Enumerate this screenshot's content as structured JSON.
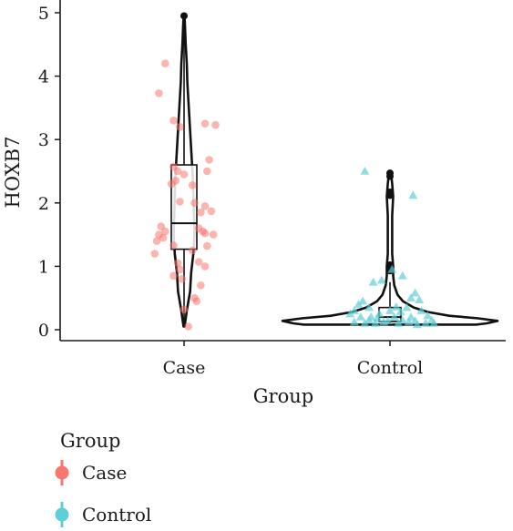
{
  "chart_data": {
    "type": "violin",
    "xlabel": "Group",
    "ylabel": "HOXB7",
    "ylim": [
      -0.15,
      5.15
    ],
    "y_ticks": [
      0,
      1,
      2,
      3,
      4,
      5
    ],
    "y_tick_labels": [
      "0",
      "1",
      "2",
      "3",
      "4",
      "5"
    ],
    "categories": [
      "Case",
      "Control"
    ],
    "grid": false,
    "legend": {
      "title": "Group",
      "position": "bottom-left",
      "entries": [
        {
          "label": "Case",
          "color": "#F8766D",
          "shape": "circle"
        },
        {
          "label": "Control",
          "color": "#5FCFD7",
          "shape": "triangle"
        }
      ]
    },
    "groups": [
      {
        "name": "Case",
        "color": "#F8766D",
        "box": {
          "min": 0.05,
          "q1": 1.27,
          "median": 1.68,
          "q3": 2.6,
          "max": 4.95
        },
        "outliers": [
          4.95
        ],
        "violin_profile": [
          [
            0.05,
            0.05
          ],
          [
            0.3,
            0.25
          ],
          [
            0.6,
            0.55
          ],
          [
            0.9,
            0.65
          ],
          [
            1.2,
            0.85
          ],
          [
            1.5,
            0.95
          ],
          [
            1.8,
            0.9
          ],
          [
            2.1,
            0.85
          ],
          [
            2.4,
            0.8
          ],
          [
            2.7,
            0.7
          ],
          [
            3.0,
            0.6
          ],
          [
            3.3,
            0.5
          ],
          [
            3.6,
            0.4
          ],
          [
            3.9,
            0.3
          ],
          [
            4.2,
            0.25
          ],
          [
            4.5,
            0.15
          ],
          [
            4.8,
            0.08
          ],
          [
            4.95,
            0.03
          ]
        ],
        "points": [
          [
            -0.09,
            4.2
          ],
          [
            -0.12,
            3.73
          ],
          [
            -0.05,
            3.3
          ],
          [
            -0.02,
            3.2
          ],
          [
            0.1,
            3.25
          ],
          [
            0.15,
            3.23
          ],
          [
            0.12,
            2.68
          ],
          [
            0.11,
            2.5
          ],
          [
            -0.05,
            2.57
          ],
          [
            -0.03,
            2.5
          ],
          [
            0.0,
            2.45
          ],
          [
            -0.04,
            2.35
          ],
          [
            -0.06,
            2.3
          ],
          [
            0.04,
            2.28
          ],
          [
            -0.02,
            2.02
          ],
          [
            0.05,
            2.0
          ],
          [
            0.1,
            1.95
          ],
          [
            0.13,
            1.87
          ],
          [
            0.08,
            1.85
          ],
          [
            -0.11,
            1.63
          ],
          [
            -0.09,
            1.55
          ],
          [
            -0.12,
            1.5
          ],
          [
            -0.1,
            1.45
          ],
          [
            -0.13,
            1.4
          ],
          [
            0.07,
            1.6
          ],
          [
            0.09,
            1.55
          ],
          [
            0.1,
            1.52
          ],
          [
            0.14,
            1.5
          ],
          [
            0.11,
            1.32
          ],
          [
            0.04,
            1.25
          ],
          [
            -0.05,
            1.33
          ],
          [
            -0.14,
            1.2
          ],
          [
            -0.03,
            1.05
          ],
          [
            -0.02,
            0.95
          ],
          [
            -0.05,
            0.85
          ],
          [
            -0.01,
            0.8
          ],
          [
            0.07,
            1.07
          ],
          [
            0.1,
            1.0
          ],
          [
            0.08,
            0.7
          ],
          [
            0.05,
            0.5
          ],
          [
            0.06,
            0.45
          ],
          [
            0.0,
            0.32
          ],
          [
            0.02,
            0.05
          ]
        ]
      },
      {
        "name": "Control",
        "color": "#5FCFD7",
        "box": {
          "min": 0.08,
          "q1": 0.13,
          "median": 0.2,
          "q3": 0.35,
          "max": 0.75
        },
        "outliers": [
          2.47,
          2.42,
          2.17,
          2.12,
          1.02,
          0.98,
          0.93
        ],
        "violin_profile": [
          [
            0.08,
            0.8
          ],
          [
            0.1,
            0.9
          ],
          [
            0.14,
            1.0
          ],
          [
            0.18,
            0.82
          ],
          [
            0.22,
            0.55
          ],
          [
            0.28,
            0.35
          ],
          [
            0.35,
            0.22
          ],
          [
            0.45,
            0.12
          ],
          [
            0.55,
            0.07
          ],
          [
            0.7,
            0.04
          ],
          [
            0.85,
            0.03
          ],
          [
            1.0,
            0.03
          ],
          [
            1.2,
            0.02
          ],
          [
            1.5,
            0.02
          ],
          [
            1.8,
            0.02
          ],
          [
            2.1,
            0.03
          ],
          [
            2.3,
            0.02
          ],
          [
            2.47,
            0.01
          ]
        ],
        "points": [
          [
            -0.12,
            2.5
          ],
          [
            0.11,
            2.12
          ],
          [
            0.06,
            0.85
          ],
          [
            0.01,
            0.95
          ],
          [
            -0.08,
            0.75
          ],
          [
            -0.04,
            0.78
          ],
          [
            0.12,
            0.58
          ],
          [
            0.1,
            0.5
          ],
          [
            0.14,
            0.47
          ],
          [
            -0.13,
            0.45
          ],
          [
            -0.15,
            0.4
          ],
          [
            -0.1,
            0.35
          ],
          [
            -0.17,
            0.3
          ],
          [
            -0.19,
            0.25
          ],
          [
            -0.14,
            0.2
          ],
          [
            -0.1,
            0.15
          ],
          [
            -0.06,
            0.18
          ],
          [
            -0.03,
            0.12
          ],
          [
            0.02,
            0.2
          ],
          [
            0.05,
            0.28
          ],
          [
            0.08,
            0.35
          ],
          [
            0.15,
            0.3
          ],
          [
            0.18,
            0.22
          ],
          [
            0.2,
            0.15
          ],
          [
            0.17,
            0.1
          ],
          [
            0.13,
            0.08
          ],
          [
            0.09,
            0.12
          ],
          [
            0.04,
            0.1
          ],
          [
            -0.01,
            0.14
          ],
          [
            -0.07,
            0.1
          ],
          [
            -0.12,
            0.1
          ],
          [
            -0.17,
            0.12
          ],
          [
            0.21,
            0.1
          ],
          [
            -0.05,
            0.25
          ],
          [
            0.0,
            0.3
          ],
          [
            0.06,
            0.15
          ],
          [
            0.1,
            0.2
          ],
          [
            -0.09,
            0.2
          ],
          [
            0.03,
            0.36
          ],
          [
            0.12,
            0.14
          ]
        ]
      }
    ]
  }
}
